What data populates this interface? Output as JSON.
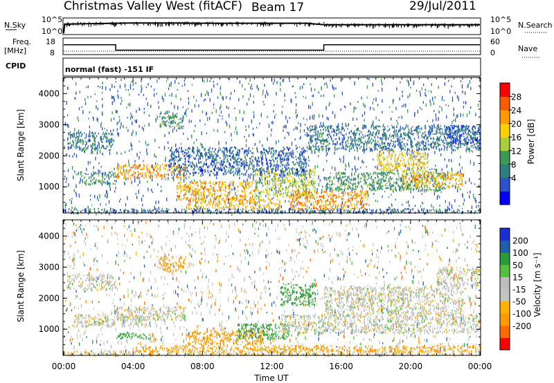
{
  "header": {
    "station": "Christmas Valley West (fitACF)",
    "beam": "Beam 17",
    "date": "29/Jul/2011"
  },
  "top_panels": {
    "nsky_label": "N.Sky",
    "nsearch_label": "N.Search",
    "nsky_ticks": [
      "10^5",
      "10^0"
    ],
    "nsearch_ticks": [
      "10^5",
      "10^0"
    ],
    "freq_label": "Freq.",
    "freq_unit": "[MHz]",
    "freq_ticks": [
      "18",
      "8"
    ],
    "nave_label": "Nave",
    "nave_ticks": [
      "60",
      "0"
    ],
    "cpid_label": "CPID",
    "cpid_text": "normal (fast) -151 IF"
  },
  "chart_data": [
    {
      "type": "line",
      "name": "noise",
      "x_hours": [
        0,
        0.05,
        2,
        4,
        6,
        8,
        10,
        12,
        14,
        15,
        18,
        20,
        22,
        24
      ],
      "y_log": [
        0.2,
        3.2,
        3.4,
        3.6,
        3.6,
        3.5,
        3.5,
        3.5,
        3.5,
        3.0,
        3.0,
        3.0,
        3.0,
        3.0
      ],
      "ylim_log": [
        0,
        5
      ]
    },
    {
      "type": "line",
      "name": "frequency",
      "x_hours": [
        0,
        3,
        3,
        15,
        15,
        24
      ],
      "y_mhz": [
        14,
        14,
        10.5,
        10.5,
        14,
        14
      ],
      "ylim": [
        8,
        18
      ]
    },
    {
      "type": "heatmap",
      "name": "power",
      "xlabel": "",
      "ylabel": "Slant Range [km]",
      "xlim_hours": [
        0,
        24
      ],
      "ylim_km": [
        180,
        4500
      ],
      "yticks": [
        1000,
        2000,
        3000,
        4000
      ],
      "colorbar": {
        "label": "Power [dB]",
        "ticks": [
          "28",
          "24",
          "20",
          "16",
          "12",
          "8",
          "4"
        ],
        "colors": [
          "#0000ff",
          "#2a55c8",
          "#2f7f7f",
          "#3d9a52",
          "#a9cf3a",
          "#ffd000",
          "#ff9a00",
          "#ff5a00",
          "#ff0000"
        ]
      },
      "regions": [
        {
          "t0": 0.0,
          "t1": 24.0,
          "r0": 180,
          "r1": 320,
          "v": 8
        },
        {
          "t0": 3.0,
          "t1": 7.0,
          "r0": 1300,
          "r1": 1750,
          "v": 26
        },
        {
          "t0": 1.0,
          "t1": 3.0,
          "r0": 1100,
          "r1": 1500,
          "v": 12
        },
        {
          "t0": 0.2,
          "t1": 2.8,
          "r0": 2200,
          "r1": 2800,
          "v": 10
        },
        {
          "t0": 5.5,
          "t1": 7.0,
          "r0": 2900,
          "r1": 3400,
          "v": 13
        },
        {
          "t0": 6.5,
          "t1": 11.0,
          "r0": 600,
          "r1": 1200,
          "v": 25
        },
        {
          "t0": 7.0,
          "t1": 12.5,
          "r0": 300,
          "r1": 650,
          "v": 24
        },
        {
          "t0": 11.0,
          "t1": 14.5,
          "r0": 700,
          "r1": 1600,
          "v": 18
        },
        {
          "t0": 13.0,
          "t1": 17.5,
          "r0": 300,
          "r1": 900,
          "v": 27
        },
        {
          "t0": 15.0,
          "t1": 22.0,
          "r0": 900,
          "r1": 1500,
          "v": 13
        },
        {
          "t0": 18.0,
          "t1": 21.0,
          "r0": 1500,
          "r1": 2200,
          "v": 22
        },
        {
          "t0": 19.5,
          "t1": 23.0,
          "r0": 1000,
          "r1": 1500,
          "v": 24
        },
        {
          "t0": 6.0,
          "t1": 14.0,
          "r0": 1400,
          "r1": 2300,
          "v": 8
        },
        {
          "t0": 14.0,
          "t1": 24.0,
          "r0": 2200,
          "r1": 3000,
          "v": 9
        },
        {
          "t0": 22.0,
          "t1": 24.0,
          "r0": 2400,
          "r1": 3000,
          "v": 6
        }
      ]
    },
    {
      "type": "heatmap",
      "name": "velocity",
      "xlabel": "Time UT",
      "ylabel": "Slant Range [km]",
      "xlim_hours": [
        0,
        24
      ],
      "ylim_km": [
        180,
        4500
      ],
      "yticks": [
        1000,
        2000,
        3000,
        4000
      ],
      "xticks": [
        "00:00",
        "04:00",
        "08:00",
        "12:00",
        "16:00",
        "20:00",
        "00:00"
      ],
      "colorbar": {
        "label": "Velocity [m s⁻¹]",
        "ticks": [
          "200",
          "100",
          "50",
          "15",
          "-15",
          "-50",
          "-100",
          "-200"
        ],
        "colors": [
          "#ff0000",
          "#ff6a00",
          "#ff9a00",
          "#ffb300",
          "#c4c4c0",
          "#bdbdbd",
          "#55c040",
          "#2a9a3a",
          "#1f5faa",
          "#1a2fd0"
        ]
      },
      "regions": [
        {
          "t0": 0.0,
          "t1": 24.0,
          "r0": 180,
          "r1": 320,
          "v": -15
        },
        {
          "t0": 0.2,
          "t1": 3.0,
          "r0": 2300,
          "r1": 2800,
          "v": 0
        },
        {
          "t0": 3.0,
          "t1": 7.0,
          "r0": 1300,
          "r1": 1750,
          "v": 0
        },
        {
          "t0": 0.5,
          "t1": 5.0,
          "r0": 1100,
          "r1": 1500,
          "v": 0
        },
        {
          "t0": 3.0,
          "t1": 5.0,
          "r0": 700,
          "r1": 900,
          "v": 50
        },
        {
          "t0": 5.5,
          "t1": 7.0,
          "r0": 2900,
          "r1": 3350,
          "v": -80
        },
        {
          "t0": 7.0,
          "t1": 11.5,
          "r0": 500,
          "r1": 1000,
          "v": -60
        },
        {
          "t0": 10.0,
          "t1": 13.0,
          "r0": 700,
          "r1": 1200,
          "v": 60
        },
        {
          "t0": 12.5,
          "t1": 24.0,
          "r0": 900,
          "r1": 1500,
          "v": 0
        },
        {
          "t0": 15.0,
          "t1": 23.0,
          "r0": 1500,
          "r1": 2400,
          "v": 0
        },
        {
          "t0": 12.5,
          "t1": 14.5,
          "r0": 1800,
          "r1": 2500,
          "v": 60
        },
        {
          "t0": 21.5,
          "t1": 24.0,
          "r0": 2400,
          "r1": 3000,
          "v": 0
        },
        {
          "t0": 4.0,
          "t1": 24.0,
          "r0": 300,
          "r1": 500,
          "v": -60
        }
      ]
    }
  ]
}
